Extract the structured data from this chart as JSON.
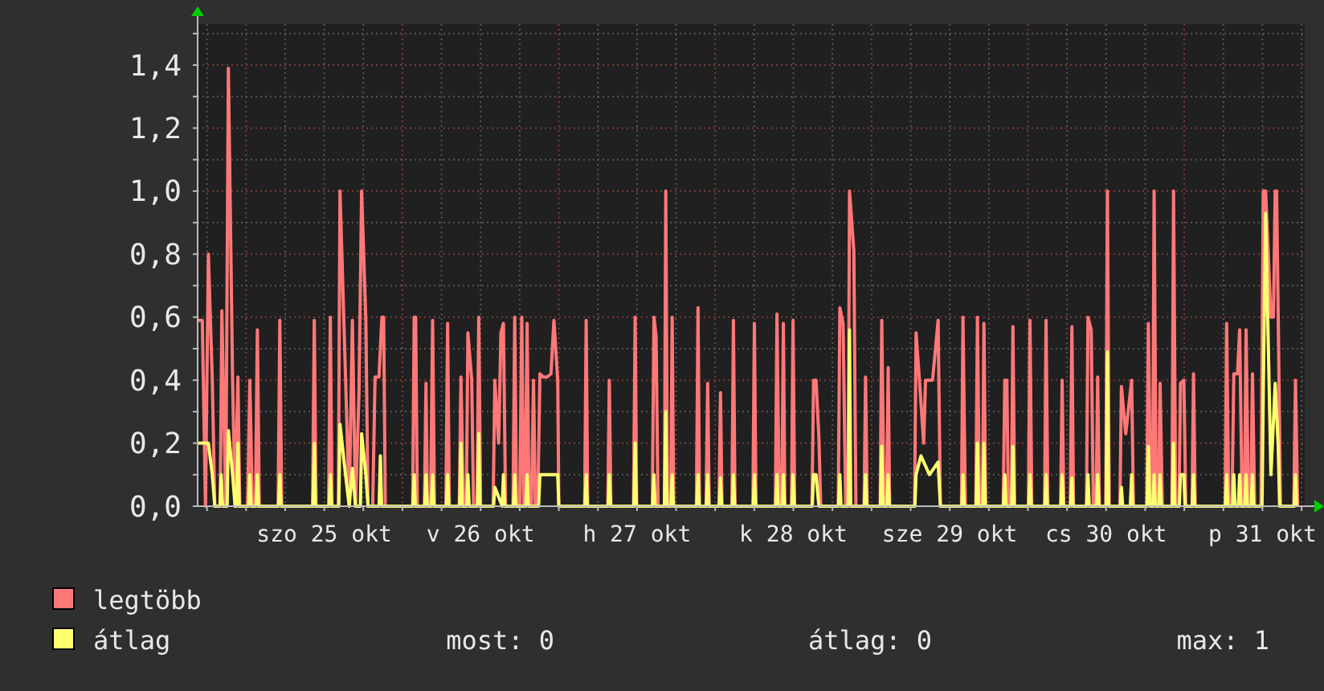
{
  "chart_data": {
    "type": "line",
    "xlim": [
      "--10-24T16:34",
      "--10-31T18:29"
    ],
    "ylim": [
      0,
      1.53
    ],
    "xticks": [
      {
        "value": "--10-24T18:00",
        "label": null
      },
      {
        "value": "--10-25T00:00",
        "label": null
      },
      {
        "value": "--10-25T06:00",
        "label": null
      },
      {
        "value": "--10-25T12:00",
        "label": "szo 25 okt"
      },
      {
        "value": "--10-25T18:00",
        "label": null
      },
      {
        "value": "--10-26T00:00",
        "label": null
      },
      {
        "value": "--10-26T06:00",
        "label": null
      },
      {
        "value": "--10-26T12:00",
        "label": "v 26 okt"
      },
      {
        "value": "--10-26T18:00",
        "label": null
      },
      {
        "value": "--10-27T00:00",
        "label": null
      },
      {
        "value": "--10-27T06:00",
        "label": null
      },
      {
        "value": "--10-27T12:00",
        "label": "h 27 okt"
      },
      {
        "value": "--10-27T18:00",
        "label": null
      },
      {
        "value": "--10-28T00:00",
        "label": null
      },
      {
        "value": "--10-28T06:00",
        "label": null
      },
      {
        "value": "--10-28T12:00",
        "label": "k 28 okt"
      },
      {
        "value": "--10-28T18:00",
        "label": null
      },
      {
        "value": "--10-29T00:00",
        "label": null
      },
      {
        "value": "--10-29T06:00",
        "label": null
      },
      {
        "value": "--10-29T12:00",
        "label": "sze 29 okt"
      },
      {
        "value": "--10-29T18:00",
        "label": null
      },
      {
        "value": "--10-30T00:00",
        "label": null
      },
      {
        "value": "--10-30T06:00",
        "label": null
      },
      {
        "value": "--10-30T12:00",
        "label": "cs 30 okt"
      },
      {
        "value": "--10-30T18:00",
        "label": null
      },
      {
        "value": "--10-31T00:00",
        "label": null
      },
      {
        "value": "--10-31T06:00",
        "label": null
      },
      {
        "value": "--10-31T12:00",
        "label": "p 31 okt"
      },
      {
        "value": "--10-31T18:00",
        "label": null
      }
    ],
    "yticks": [
      {
        "value": 0,
        "label": "0,0"
      },
      {
        "value": 0.1,
        "label": null
      },
      {
        "value": 0.2,
        "label": "0,2"
      },
      {
        "value": 0.3,
        "label": null
      },
      {
        "value": 0.4,
        "label": "0,4"
      },
      {
        "value": 0.5,
        "label": null
      },
      {
        "value": 0.6,
        "label": "0,6"
      },
      {
        "value": 0.7,
        "label": null
      },
      {
        "value": 0.8,
        "label": "0,8"
      },
      {
        "value": 0.9,
        "label": null
      },
      {
        "value": 1.0,
        "label": "1,0"
      },
      {
        "value": 1.1,
        "label": null
      },
      {
        "value": 1.2,
        "label": "1,2"
      },
      {
        "value": 1.3,
        "label": null
      },
      {
        "value": 1.4,
        "label": "1,4"
      },
      {
        "value": 1.5,
        "label": null
      }
    ],
    "grid": true,
    "legend": "bottom left",
    "marker": "none",
    "line_style": "solid",
    "annotations": [
      "most: 0",
      "átlag: 0",
      "max: 1"
    ],
    "series": [
      {
        "name": "legtöbb",
        "color": "#ff7878",
        "x": [
          "--10-24T16:34",
          "--10-24T17:17",
          "--10-24T17:46",
          "--10-24T18:13",
          "--10-24T18:49",
          "--10-24T19:12",
          "--10-24T20:02",
          "--10-24T20:17",
          "--10-24T20:53",
          "--10-24T21:17",
          "--10-24T21:56",
          "--10-24T22:19",
          "--10-24T22:45",
          "--10-24T23:02",
          "--10-25T00:14",
          "--10-25T00:35",
          "--10-25T00:58",
          "--10-25T01:26",
          "--10-25T01:44",
          "--10-25T02:02",
          "--10-25T04:55",
          "--10-25T05:11",
          "--10-25T05:28",
          "--10-25T10:12",
          "--10-25T10:28",
          "--10-25T10:45",
          "--10-25T12:40",
          "--10-25T12:56",
          "--10-25T13:12",
          "--10-25T14:10",
          "--10-25T14:25",
          "--10-25T15:16",
          "--10-25T15:50",
          "--10-25T16:19",
          "--10-25T16:48",
          "--10-25T17:20",
          "--10-25T17:44",
          "--10-25T18:23",
          "--10-25T18:43",
          "--10-25T19:26",
          "--10-25T19:48",
          "--10-25T20:24",
          "--10-25T20:51",
          "--10-25T21:07",
          "--10-25T21:22",
          "--10-26T01:34",
          "--10-26T01:48",
          "--10-26T02:02",
          "--10-26T02:17",
          "--10-26T03:22",
          "--10-26T03:37",
          "--10-26T03:50",
          "--10-26T04:19",
          "--10-26T04:38",
          "--10-26T04:55",
          "--10-26T06:40",
          "--10-26T06:56",
          "--10-26T07:12",
          "--10-26T08:43",
          "--10-26T08:59",
          "--10-26T09:22",
          "--10-26T09:48",
          "--10-26T10:03",
          "--10-26T10:38",
          "--10-26T10:55",
          "--10-26T11:27",
          "--10-26T11:43",
          "--10-26T12:00",
          "--10-26T13:55",
          "--10-26T14:11",
          "--10-26T14:46",
          "--10-26T15:07",
          "--10-26T15:30",
          "--10-26T15:50",
          "--10-26T16:58",
          "--10-26T17:14",
          "--10-26T17:31",
          "--10-26T18:00",
          "--10-26T18:19",
          "--10-26T18:36",
          "--10-26T18:50",
          "--10-26T19:08",
          "--10-26T19:26",
          "--10-26T19:48",
          "--10-26T20:07",
          "--10-26T20:24",
          "--10-26T20:46",
          "--10-26T21:06",
          "--10-26T21:36",
          "--10-26T22:12",
          "--10-26T22:48",
          "--10-26T23:15",
          "--10-26T23:50",
          "--10-27T00:00",
          "--10-27T03:58",
          "--10-27T04:12",
          "--10-27T04:26",
          "--10-27T07:31",
          "--10-27T07:45",
          "--10-27T08:00",
          "--10-27T11:28",
          "--10-27T11:43",
          "--10-27T11:57",
          "--10-27T14:21",
          "--10-27T14:36",
          "--10-27T14:56",
          "--10-27T15:14",
          "--10-27T16:12",
          "--10-27T16:25",
          "--10-27T16:41",
          "--10-27T17:10",
          "--10-27T17:24",
          "--10-27T17:38",
          "--10-27T21:07",
          "--10-27T21:22",
          "--10-27T21:36",
          "--10-27T22:36",
          "--10-27T22:51",
          "--10-27T23:05",
          "--10-28T00:35",
          "--10-28T00:49",
          "--10-28T01:03",
          "--10-28T02:34",
          "--10-28T02:48",
          "--10-28T03:03",
          "--10-28T05:47",
          "--10-28T06:01",
          "--10-28T06:16",
          "--10-28T09:14",
          "--10-28T09:29",
          "--10-28T09:50",
          "--10-28T10:13",
          "--10-28T10:28",
          "--10-28T10:42",
          "--10-28T11:43",
          "--10-28T11:57",
          "--10-28T12:12",
          "--10-28T14:51",
          "--10-28T15:06",
          "--10-28T15:29",
          "--10-28T15:55",
          "--10-28T16:12",
          "--10-28T18:53",
          "--10-28T19:08",
          "--10-28T19:38",
          "--10-28T20:02",
          "--10-28T20:24",
          "--10-28T20:37",
          "--10-28T21:17",
          "--10-28T21:36",
          "--10-28T22:51",
          "--10-28T23:05",
          "--10-28T23:20",
          "--10-29T01:19",
          "--10-29T01:34",
          "--10-29T01:55",
          "--10-29T02:18",
          "--10-29T02:33",
          "--10-29T02:47",
          "--10-29T06:36",
          "--10-29T06:50",
          "--10-29T07:21",
          "--10-29T08:00",
          "--10-29T08:17",
          "--10-29T09:22",
          "--10-29T10:13",
          "--10-29T10:34",
          "--10-29T13:48",
          "--10-29T14:02",
          "--10-29T14:24",
          "--10-29T16:00",
          "--10-29T16:15",
          "--10-29T16:34",
          "--10-29T17:01",
          "--10-29T17:15",
          "--10-29T17:31",
          "--10-29T20:12",
          "--10-29T20:27",
          "--10-29T20:46",
          "--10-29T21:00",
          "--10-29T21:27",
          "--10-29T21:42",
          "--10-29T21:58",
          "--10-30T00:04",
          "--10-30T00:19",
          "--10-30T00:36",
          "--10-30T02:33",
          "--10-30T02:47",
          "--10-30T03:04",
          "--10-30T05:01",
          "--10-30T05:15",
          "--10-30T05:31",
          "--10-30T06:30",
          "--10-30T06:45",
          "--10-30T07:00",
          "--10-30T08:59",
          "--10-30T09:13",
          "--10-30T09:43",
          "--10-30T10:02",
          "--10-30T10:28",
          "--10-30T10:42",
          "--10-30T10:59",
          "--10-30T11:57",
          "--10-30T12:12",
          "--10-30T12:29",
          "--10-30T14:07",
          "--10-30T14:21",
          "--10-30T15:01",
          "--10-30T15:55",
          "--10-30T16:12",
          "--10-30T18:14",
          "--10-30T18:29",
          "--10-30T18:50",
          "--10-30T19:08",
          "--10-30T19:22",
          "--10-30T19:41",
          "--10-30T20:02",
          "--10-30T20:17",
          "--10-30T20:38",
          "--10-30T22:06",
          "--10-30T22:21",
          "--10-30T22:41",
          "--10-30T23:11",
          "--10-30T23:25",
          "--10-30T23:56",
          "--10-31T00:14",
          "--10-31T01:11",
          "--10-31T01:25",
          "--10-31T01:41",
          "--10-31T06:16",
          "--10-31T06:30",
          "--10-31T06:50",
          "--10-31T07:19",
          "--10-31T07:36",
          "--10-31T08:10",
          "--10-31T08:30",
          "--10-31T08:53",
          "--10-31T09:14",
          "--10-31T09:29",
          "--10-31T09:50",
          "--10-31T10:12",
          "--10-31T10:28",
          "--10-31T10:48",
          "--10-31T11:46",
          "--10-31T12:07",
          "--10-31T12:29",
          "--10-31T13:18",
          "--10-31T13:41",
          "--10-31T13:57",
          "--10-31T14:10",
          "--10-31T14:25",
          "--10-31T14:46",
          "--10-31T16:48",
          "--10-31T17:04",
          "--10-31T17:24"
        ],
        "values": [
          0.59,
          0.59,
          0,
          0.8,
          0.4,
          0,
          0,
          0.62,
          0,
          1.39,
          0.4,
          0,
          0.41,
          0,
          0,
          0.4,
          0,
          0,
          0.56,
          0,
          0,
          0.59,
          0,
          0,
          0.59,
          0,
          0,
          0.6,
          0,
          0,
          1.0,
          0.41,
          0,
          0.59,
          0,
          0.36,
          1.0,
          0.59,
          0,
          0,
          0.41,
          0.41,
          0.6,
          0.6,
          0,
          0,
          0.6,
          0.6,
          0,
          0,
          0.39,
          0,
          0,
          0.59,
          0,
          0,
          0.58,
          0,
          0,
          0.41,
          0,
          0,
          0.55,
          0.4,
          0,
          0,
          0.6,
          0,
          0,
          0.4,
          0.2,
          0.55,
          0.58,
          0,
          0,
          0.6,
          0,
          0,
          0.6,
          0,
          0,
          0.58,
          0,
          0,
          0.4,
          0,
          0,
          0.42,
          0.41,
          0.41,
          0.42,
          0.59,
          0.4,
          0,
          0,
          0.59,
          0,
          0,
          0.4,
          0,
          0,
          0.6,
          0,
          0,
          0.6,
          0.54,
          0,
          0,
          1.0,
          0,
          0,
          0.6,
          0,
          0,
          0.63,
          0,
          0,
          0.39,
          0,
          0,
          0.36,
          0,
          0,
          0.59,
          0,
          0,
          0.58,
          0,
          0,
          0.61,
          0,
          0,
          0.58,
          0,
          0,
          0.59,
          0,
          0,
          0.4,
          0.4,
          0.22,
          0,
          0,
          0.63,
          0.58,
          0,
          0,
          1.0,
          0.81,
          0,
          0,
          0.41,
          0,
          0,
          0.59,
          0,
          0,
          0.44,
          0,
          0,
          0.55,
          0.4,
          0.2,
          0.4,
          0.4,
          0.59,
          0,
          0,
          0.6,
          0,
          0,
          0.6,
          0,
          0,
          0.58,
          0,
          0,
          0.4,
          0.4,
          0,
          0,
          0.57,
          0,
          0,
          0.59,
          0,
          0,
          0.59,
          0,
          0,
          0.4,
          0,
          0,
          0.57,
          0,
          0,
          0.6,
          0.56,
          0,
          0,
          0.41,
          0,
          0,
          1.0,
          0,
          0,
          0.38,
          0.23,
          0.4,
          0,
          0,
          0.58,
          0,
          0,
          1.0,
          0,
          0,
          0.39,
          0,
          0,
          1.0,
          0,
          0,
          0.39,
          0.4,
          0,
          0,
          0.42,
          0,
          0,
          0.58,
          0,
          0,
          0.42,
          0.42,
          0.56,
          0,
          0,
          0.56,
          0,
          0,
          0.42,
          0,
          0,
          1.0,
          1.0,
          0.6,
          0.6,
          1.0,
          1.0,
          0.6,
          0,
          0,
          0.4,
          0
        ]
      },
      {
        "name": "átlag",
        "color": "#ffff70",
        "x": [
          "--10-24T16:34",
          "--10-24T17:10",
          "--10-24T18:13",
          "--10-24T18:49",
          "--10-24T19:12",
          "--10-24T19:59",
          "--10-24T20:11",
          "--10-24T20:24",
          "--10-24T21:06",
          "--10-24T21:17",
          "--10-24T21:56",
          "--10-24T22:19",
          "--10-24T22:34",
          "--10-24T22:45",
          "--10-24T22:57",
          "--10-25T00:23",
          "--10-25T00:35",
          "--10-25T00:46",
          "--10-25T01:32",
          "--10-25T01:44",
          "--10-25T01:55",
          "--10-25T04:59",
          "--10-25T05:11",
          "--10-25T05:23",
          "--10-25T10:16",
          "--10-25T10:28",
          "--10-25T10:39",
          "--10-25T12:45",
          "--10-25T12:56",
          "--10-25T13:08",
          "--10-25T14:14",
          "--10-25T14:25",
          "--10-25T15:16",
          "--10-25T15:50",
          "--10-25T16:19",
          "--10-25T16:48",
          "--10-25T17:33",
          "--10-25T17:44",
          "--10-25T18:23",
          "--10-25T18:43",
          "--10-25T20:25",
          "--10-25T20:37",
          "--10-25T20:48",
          "--10-26T01:36",
          "--10-26T01:48",
          "--10-26T01:59",
          "--10-26T03:26",
          "--10-26T03:37",
          "--10-26T03:49",
          "--10-26T04:26",
          "--10-26T04:38",
          "--10-26T04:49",
          "--10-26T06:45",
          "--10-26T06:56",
          "--10-26T07:08",
          "--10-26T08:47",
          "--10-26T08:59",
          "--10-26T09:10",
          "--10-26T09:52",
          "--10-26T10:03",
          "--10-26T10:15",
          "--10-26T11:31",
          "--10-26T11:43",
          "--10-26T11:54",
          "--10-26T13:59",
          "--10-26T14:11",
          "--10-26T15:19",
          "--10-26T15:30",
          "--10-26T15:42",
          "--10-26T17:02",
          "--10-26T17:14",
          "--10-26T17:25",
          "--10-26T18:56",
          "--10-26T19:08",
          "--10-26T19:19",
          "--10-26T20:54",
          "--10-26T21:06",
          "--10-26T23:50",
          "--10-27T00:00",
          "--10-27T04:00",
          "--10-27T04:12",
          "--10-27T04:23",
          "--10-27T07:34",
          "--10-27T07:45",
          "--10-27T07:57",
          "--10-27T11:31",
          "--10-27T11:43",
          "--10-27T11:54",
          "--10-27T14:24",
          "--10-27T14:36",
          "--10-27T14:47",
          "--10-27T16:13",
          "--10-27T16:25",
          "--10-27T16:36",
          "--10-27T17:12",
          "--10-27T17:24",
          "--10-27T17:35",
          "--10-27T21:10",
          "--10-27T21:22",
          "--10-27T21:33",
          "--10-27T22:39",
          "--10-27T22:51",
          "--10-27T23:02",
          "--10-28T00:37",
          "--10-28T00:49",
          "--10-28T01:00",
          "--10-28T02:37",
          "--10-28T02:48",
          "--10-28T03:00",
          "--10-28T05:50",
          "--10-28T06:01",
          "--10-28T06:13",
          "--10-28T09:17",
          "--10-28T09:29",
          "--10-28T09:40",
          "--10-28T10:16",
          "--10-28T10:28",
          "--10-28T10:39",
          "--10-28T11:46",
          "--10-28T11:57",
          "--10-28T12:09",
          "--10-28T14:54",
          "--10-28T15:06",
          "--10-28T15:29",
          "--10-28T15:55",
          "--10-28T18:56",
          "--10-28T19:08",
          "--10-28T19:19",
          "--10-28T20:25",
          "--10-28T20:37",
          "--10-28T20:48",
          "--10-28T22:54",
          "--10-28T23:05",
          "--10-28T23:17",
          "--10-29T01:22",
          "--10-29T01:34",
          "--10-29T01:45",
          "--10-29T02:21",
          "--10-29T02:33",
          "--10-29T02:44",
          "--10-29T06:39",
          "--10-29T06:50",
          "--10-29T07:35",
          "--10-29T08:53",
          "--10-29T10:13",
          "--10-29T10:34",
          "--10-29T13:51",
          "--10-29T14:02",
          "--10-29T14:14",
          "--10-29T16:03",
          "--10-29T16:15",
          "--10-29T16:26",
          "--10-29T17:04",
          "--10-29T17:15",
          "--10-29T17:27",
          "--10-29T20:15",
          "--10-29T20:27",
          "--10-29T20:38",
          "--10-29T21:30",
          "--10-29T21:42",
          "--10-29T21:53",
          "--10-30T00:07",
          "--10-30T00:19",
          "--10-30T00:30",
          "--10-30T02:36",
          "--10-30T02:47",
          "--10-30T02:59",
          "--10-30T05:04",
          "--10-30T05:15",
          "--10-30T05:27",
          "--10-30T06:33",
          "--10-30T06:45",
          "--10-30T06:56",
          "--10-30T09:01",
          "--10-30T09:13",
          "--10-30T09:25",
          "--10-30T10:31",
          "--10-30T10:42",
          "--10-30T10:54",
          "--10-30T12:00",
          "--10-30T12:12",
          "--10-30T12:23",
          "--10-30T14:10",
          "--10-30T14:21",
          "--10-30T14:33",
          "--10-30T15:43",
          "--10-30T15:55",
          "--10-30T16:06",
          "--10-30T18:17",
          "--10-30T18:29",
          "--10-30T18:43",
          "--10-30T19:11",
          "--10-30T19:22",
          "--10-30T19:34",
          "--10-30T20:05",
          "--10-30T20:17",
          "--10-30T20:28",
          "--10-30T22:09",
          "--10-30T22:21",
          "--10-30T22:32",
          "--10-30T23:14",
          "--10-30T23:25",
          "--10-30T23:56",
          "--10-31T00:07",
          "--10-31T01:13",
          "--10-31T01:25",
          "--10-31T01:36",
          "--10-31T06:19",
          "--10-31T06:30",
          "--10-31T06:42",
          "--10-31T07:25",
          "--10-31T07:36",
          "--10-31T07:48",
          "--10-31T08:18",
          "--10-31T08:30",
          "--10-31T08:41",
          "--10-31T09:17",
          "--10-31T09:29",
          "--10-31T09:40",
          "--10-31T10:16",
          "--10-31T10:28",
          "--10-31T10:39",
          "--10-31T11:56",
          "--10-31T12:07",
          "--10-31T12:29",
          "--10-31T13:18",
          "--10-31T13:57",
          "--10-31T14:25",
          "--10-31T14:38",
          "--10-31T16:52",
          "--10-31T17:04",
          "--10-31T17:15"
        ],
        "values": [
          0.2,
          0.2,
          0.2,
          0.1,
          0,
          0,
          0.1,
          0,
          0,
          0.24,
          0.1,
          0,
          0,
          0.2,
          0,
          0,
          0.1,
          0,
          0,
          0.1,
          0,
          0,
          0.1,
          0,
          0,
          0.2,
          0,
          0,
          0.1,
          0,
          0,
          0.26,
          0.1,
          0,
          0.12,
          0,
          0,
          0.23,
          0.1,
          0,
          0,
          0.16,
          0,
          0,
          0.1,
          0,
          0,
          0.1,
          0,
          0,
          0.1,
          0,
          0,
          0.1,
          0,
          0,
          0.2,
          0,
          0,
          0.1,
          0,
          0,
          0.23,
          0,
          0,
          0.06,
          0,
          0.1,
          0,
          0,
          0.1,
          0,
          0,
          0.1,
          0,
          0,
          0.1,
          0.1,
          0,
          0,
          0.1,
          0,
          0,
          0.1,
          0,
          0,
          0.2,
          0,
          0,
          0.1,
          0,
          0,
          0.3,
          0,
          0,
          0.1,
          0,
          0,
          0.1,
          0,
          0,
          0.1,
          0,
          0,
          0.09,
          0,
          0,
          0.1,
          0,
          0,
          0.1,
          0,
          0,
          0.1,
          0,
          0,
          0.1,
          0,
          0,
          0.1,
          0,
          0,
          0.1,
          0.1,
          0,
          0,
          0.1,
          0,
          0,
          0.56,
          0,
          0,
          0.1,
          0,
          0,
          0.19,
          0,
          0,
          0.1,
          0,
          0,
          0.1,
          0.16,
          0.1,
          0.14,
          0,
          0,
          0.1,
          0,
          0,
          0.2,
          0,
          0,
          0.2,
          0,
          0,
          0.1,
          0,
          0,
          0.19,
          0,
          0,
          0.1,
          0,
          0,
          0.1,
          0,
          0,
          0.1,
          0,
          0,
          0.09,
          0,
          0,
          0.1,
          0,
          0,
          0.1,
          0,
          0,
          0.49,
          0,
          0,
          0.06,
          0,
          0,
          0.1,
          0,
          0,
          0.19,
          0,
          0,
          0.1,
          0,
          0,
          0.1,
          0,
          0,
          0.2,
          0,
          0,
          0.1,
          0.1,
          0,
          0,
          0.1,
          0,
          0,
          0.1,
          0,
          0,
          0.1,
          0,
          0,
          0.1,
          0,
          0,
          0.1,
          0,
          0,
          0.1,
          0,
          0,
          0.35,
          0.93,
          0.1,
          0.39,
          0.19,
          0,
          0,
          0.1,
          0
        ]
      }
    ]
  }
}
